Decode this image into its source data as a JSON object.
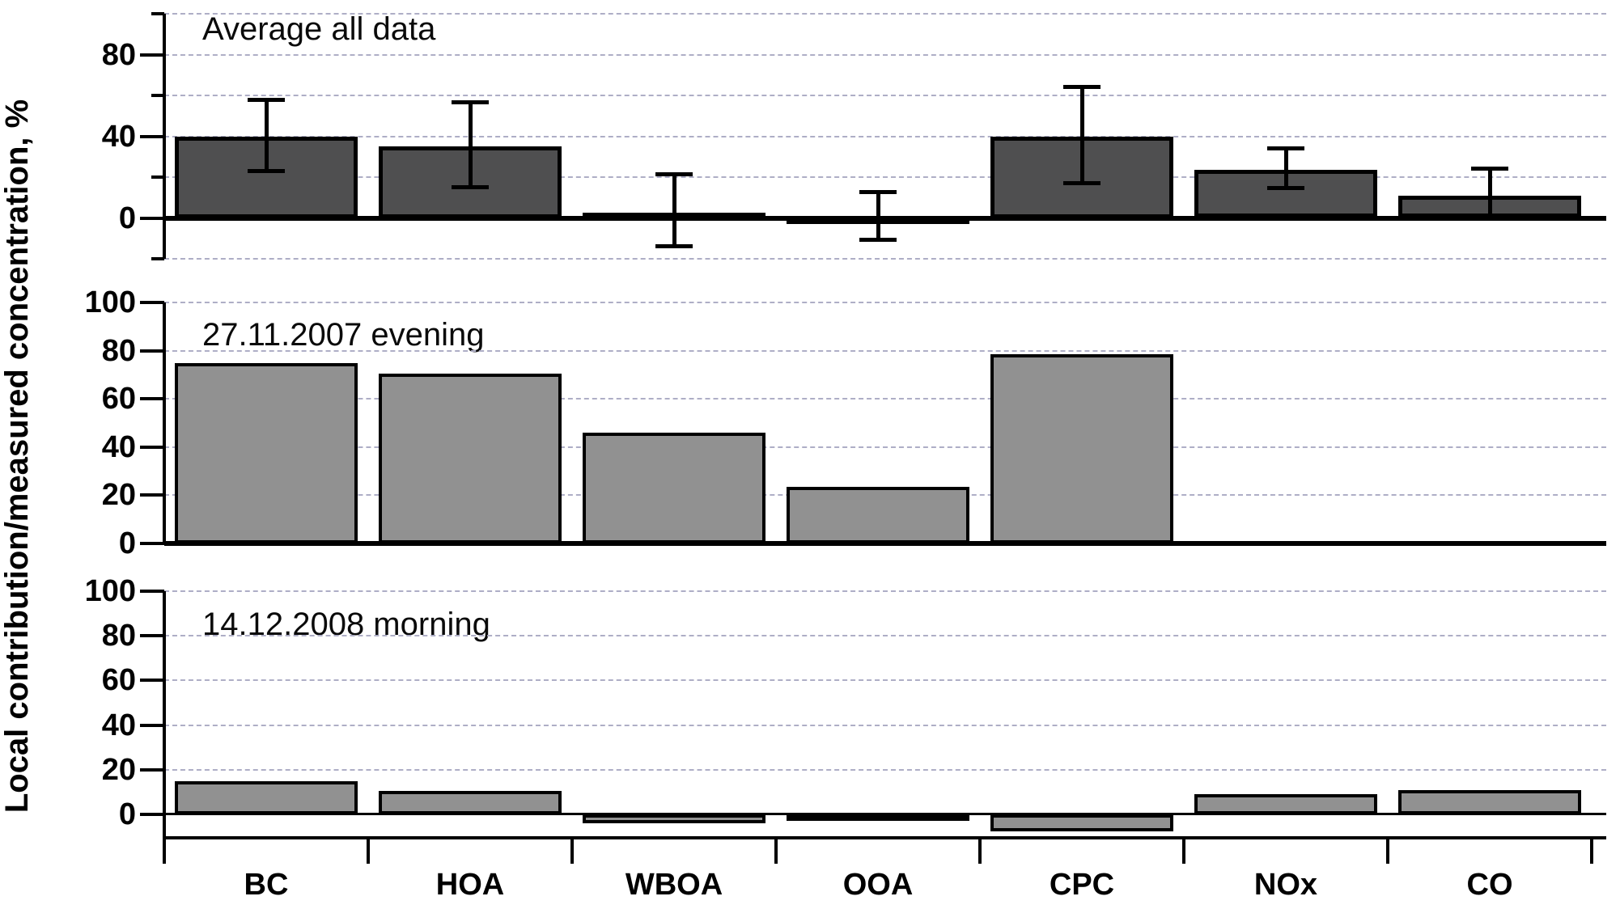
{
  "figure": {
    "y_axis_title": "Local contribution/measured concentration, %",
    "axis_color": "#000000",
    "gridline_color": "#aeaec6",
    "background_color": "#ffffff"
  },
  "chart_data": [
    {
      "type": "bar",
      "title": "Average all data",
      "categories": [
        "BC",
        "HOA",
        "WBOA",
        "OOA",
        "CPC",
        "NOx",
        "CO"
      ],
      "values": [
        40,
        35,
        2.5,
        0.8,
        40,
        23.5,
        11
      ],
      "error_low": [
        23,
        15,
        -14,
        -10.5,
        17,
        14.5,
        0
      ],
      "error_high": [
        58,
        56.5,
        21.5,
        12.5,
        64,
        34,
        24
      ],
      "error_bars": true,
      "ylim": [
        -20,
        100
      ],
      "yticks_labeled": [
        0,
        40,
        80
      ],
      "yticks_short": [
        -20,
        20,
        60,
        100
      ],
      "gridlines": [
        -20,
        20,
        40,
        60,
        80,
        100
      ],
      "bar_color": "#4f4f50",
      "grid": true,
      "legend": "none"
    },
    {
      "type": "bar",
      "title": "27.11.2007 evening",
      "categories": [
        "BC",
        "HOA",
        "WBOA",
        "OOA",
        "CPC",
        "NOx",
        "CO"
      ],
      "values": [
        75,
        70.5,
        46,
        23.5,
        78.5,
        null,
        null
      ],
      "error_bars": false,
      "ylim": [
        0,
        100
      ],
      "yticks_labeled": [
        0,
        20,
        40,
        60,
        80,
        100
      ],
      "yticks_short": [],
      "gridlines": [
        20,
        40,
        60,
        80,
        100
      ],
      "bar_color": "#919191",
      "grid": true,
      "legend": "none"
    },
    {
      "type": "bar",
      "title": "14.12.2008 morning",
      "categories": [
        "BC",
        "HOA",
        "WBOA",
        "OOA",
        "CPC",
        "NOx",
        "CO"
      ],
      "values": [
        15,
        10.5,
        -4,
        -2.5,
        -7.5,
        9,
        11
      ],
      "error_bars": false,
      "ylim": [
        -12,
        100
      ],
      "yticks_labeled": [
        0,
        20,
        40,
        60,
        80,
        100
      ],
      "yticks_short": [],
      "gridlines": [
        20,
        40,
        60,
        80,
        100
      ],
      "bar_color": "#919191",
      "grid": true,
      "legend": "none"
    }
  ]
}
